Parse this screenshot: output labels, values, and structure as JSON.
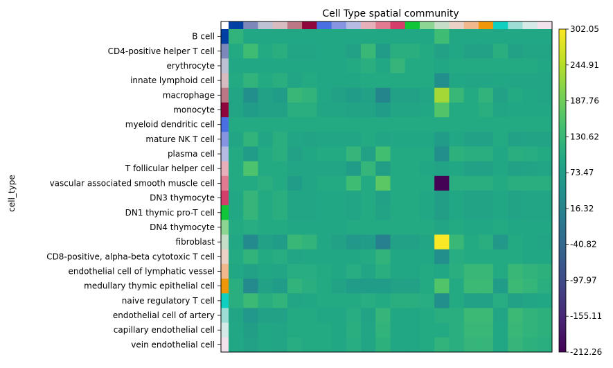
{
  "chart_data": {
    "type": "heatmap",
    "title": "Cell Type spatial community",
    "ylabel": "cell_type",
    "xlabel": "",
    "rows": [
      "B cell",
      "CD4-positive helper T cell",
      "erythrocyte",
      "innate lymphoid cell",
      "macrophage",
      "monocyte",
      "myeloid dendritic cell",
      "mature NK T cell",
      "plasma cell",
      "T follicular helper cell",
      "vascular associated smooth muscle cell",
      "DN3 thymocyte",
      "DN1 thymic pro-T cell",
      "DN4 thymocyte",
      "fibroblast",
      "CD8-positive, alpha-beta cytotoxic T cell",
      "endothelial cell of lymphatic vessel",
      "medullary thymic epithelial cell",
      "naive regulatory T cell",
      "endothelial cell of artery",
      "capillary endothelial cell",
      "vein endothelial cell"
    ],
    "group_colors": [
      "#023fa5",
      "#7d87b9",
      "#bec1d4",
      "#d6bcc0",
      "#bb7784",
      "#8e063b",
      "#4a6fe3",
      "#8595e1",
      "#b5bbe3",
      "#e6afb9",
      "#e07b91",
      "#d33f6a",
      "#11c638",
      "#8dd593",
      "#c6dec7",
      "#ead3c6",
      "#f0b98d",
      "#ef9708",
      "#0fcfc0",
      "#9cded6",
      "#d5eae7",
      "#f3e1eb"
    ],
    "colorbar_ticks": [
      "302.05",
      "244.91",
      "187.76",
      "130.62",
      "73.47",
      "16.32",
      "-40.82",
      "-97.97",
      "-155.11",
      "-212.26"
    ],
    "vmin": -212.26,
    "vmax": 302.05,
    "values": [
      [
        120,
        95,
        95,
        95,
        95,
        95,
        95,
        95,
        95,
        95,
        95,
        95,
        95,
        95,
        140,
        95,
        95,
        95,
        95,
        95,
        95,
        95
      ],
      [
        100,
        140,
        100,
        110,
        90,
        90,
        95,
        95,
        80,
        130,
        70,
        110,
        110,
        100,
        80,
        95,
        80,
        80,
        110,
        80,
        90,
        90
      ],
      [
        95,
        95,
        95,
        95,
        95,
        95,
        95,
        95,
        100,
        110,
        95,
        125,
        100,
        100,
        95,
        100,
        100,
        100,
        100,
        100,
        100,
        95
      ],
      [
        100,
        120,
        100,
        110,
        90,
        100,
        95,
        95,
        95,
        100,
        100,
        100,
        100,
        100,
        40,
        95,
        90,
        90,
        95,
        90,
        90,
        90
      ],
      [
        90,
        40,
        80,
        70,
        130,
        120,
        95,
        80,
        70,
        80,
        20,
        80,
        80,
        90,
        230,
        130,
        100,
        120,
        80,
        100,
        95,
        90
      ],
      [
        90,
        70,
        80,
        80,
        110,
        110,
        90,
        90,
        85,
        85,
        70,
        90,
        90,
        95,
        160,
        100,
        100,
        110,
        90,
        95,
        95,
        95
      ],
      [
        100,
        100,
        100,
        100,
        100,
        100,
        100,
        100,
        100,
        100,
        100,
        100,
        100,
        100,
        100,
        100,
        100,
        100,
        100,
        100,
        100,
        100
      ],
      [
        90,
        120,
        90,
        110,
        90,
        85,
        90,
        90,
        90,
        100,
        90,
        95,
        95,
        95,
        70,
        95,
        80,
        80,
        100,
        80,
        85,
        85
      ],
      [
        100,
        70,
        100,
        110,
        80,
        95,
        100,
        100,
        125,
        80,
        145,
        100,
        100,
        100,
        40,
        115,
        110,
        110,
        95,
        110,
        105,
        100
      ],
      [
        100,
        155,
        100,
        100,
        90,
        90,
        90,
        90,
        70,
        125,
        75,
        100,
        100,
        95,
        85,
        95,
        80,
        80,
        95,
        80,
        85,
        90
      ],
      [
        100,
        100,
        110,
        100,
        70,
        90,
        100,
        100,
        140,
        100,
        170,
        100,
        100,
        100,
        -210,
        110,
        110,
        110,
        100,
        110,
        110,
        110
      ],
      [
        95,
        125,
        100,
        110,
        90,
        90,
        95,
        95,
        90,
        100,
        80,
        100,
        100,
        95,
        75,
        95,
        85,
        85,
        95,
        85,
        90,
        90
      ],
      [
        95,
        125,
        100,
        110,
        90,
        90,
        95,
        95,
        90,
        100,
        85,
        100,
        100,
        95,
        75,
        95,
        85,
        85,
        95,
        85,
        90,
        90
      ],
      [
        100,
        105,
        100,
        100,
        95,
        95,
        95,
        95,
        100,
        100,
        100,
        100,
        100,
        100,
        90,
        100,
        95,
        95,
        100,
        95,
        95,
        95
      ],
      [
        95,
        30,
        80,
        70,
        130,
        120,
        95,
        80,
        60,
        70,
        10,
        80,
        80,
        90,
        300,
        130,
        100,
        110,
        60,
        100,
        95,
        90
      ],
      [
        100,
        120,
        100,
        105,
        90,
        95,
        95,
        95,
        95,
        100,
        120,
        95,
        95,
        95,
        40,
        105,
        100,
        100,
        100,
        100,
        95,
        95
      ],
      [
        95,
        80,
        95,
        90,
        105,
        105,
        100,
        95,
        105,
        90,
        110,
        95,
        95,
        100,
        95,
        110,
        130,
        130,
        100,
        130,
        120,
        115
      ],
      [
        110,
        30,
        80,
        70,
        120,
        110,
        100,
        85,
        70,
        70,
        70,
        80,
        80,
        100,
        160,
        100,
        135,
        135,
        70,
        135,
        125,
        110
      ],
      [
        110,
        135,
        110,
        120,
        90,
        95,
        100,
        100,
        100,
        105,
        100,
        110,
        110,
        105,
        40,
        100,
        80,
        80,
        105,
        80,
        90,
        95
      ],
      [
        90,
        60,
        80,
        80,
        100,
        100,
        95,
        95,
        105,
        85,
        125,
        95,
        95,
        100,
        110,
        110,
        135,
        135,
        90,
        135,
        120,
        115
      ],
      [
        95,
        75,
        95,
        90,
        100,
        100,
        100,
        95,
        110,
        90,
        120,
        95,
        95,
        100,
        100,
        110,
        130,
        130,
        95,
        130,
        120,
        115
      ],
      [
        95,
        80,
        95,
        90,
        105,
        100,
        100,
        95,
        105,
        90,
        115,
        95,
        95,
        100,
        120,
        110,
        125,
        125,
        95,
        125,
        115,
        110
      ]
    ]
  }
}
